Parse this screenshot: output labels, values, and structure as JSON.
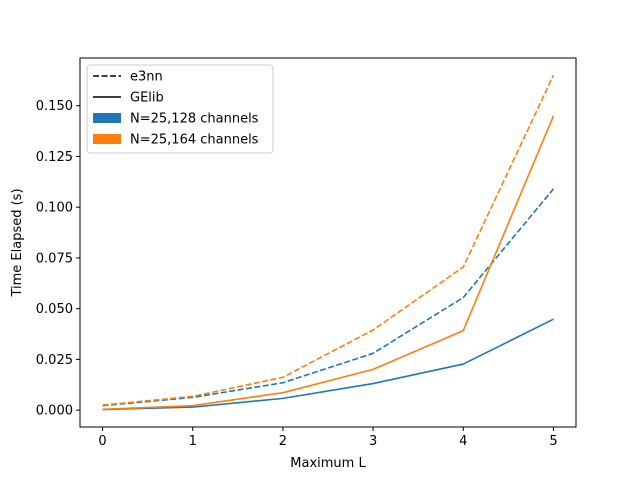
{
  "chart_data": {
    "type": "line",
    "xlabel": "Maximum L",
    "ylabel": "Time Elapsed (s)",
    "xlim": [
      -0.25,
      5.25
    ],
    "ylim": [
      -0.0083,
      0.1735
    ],
    "grid": false,
    "legend_position": "top-left",
    "x": [
      0,
      1,
      2,
      3,
      4,
      5
    ],
    "x_ticks": [
      0,
      1,
      2,
      3,
      4,
      5
    ],
    "x_tick_labels": [
      "0",
      "1",
      "2",
      "3",
      "4",
      "5"
    ],
    "y_ticks": [
      0.0,
      0.025,
      0.05,
      0.075,
      0.1,
      0.125,
      0.15
    ],
    "y_tick_labels": [
      "0.000",
      "0.025",
      "0.050",
      "0.075",
      "0.100",
      "0.125",
      "0.150"
    ],
    "legend": [
      {
        "label": "e3nn",
        "kind": "line",
        "style": "dashed",
        "color": "#000000"
      },
      {
        "label": "GElib",
        "kind": "line",
        "style": "solid",
        "color": "#000000"
      },
      {
        "label": "N=25,128 channels",
        "kind": "patch",
        "color": "#1f77b4"
      },
      {
        "label": "N=25,164 channels",
        "kind": "patch",
        "color": "#ff7f0e"
      }
    ],
    "series": [
      {
        "library": "e3nn",
        "channels": "N=25,128 channels",
        "color": "#1f77b4",
        "style": "dashed",
        "values": [
          0.0022,
          0.0063,
          0.0135,
          0.028,
          0.0555,
          0.109
        ]
      },
      {
        "library": "e3nn",
        "channels": "N=25,164 channels",
        "color": "#ff7f0e",
        "style": "dashed",
        "values": [
          0.0025,
          0.0068,
          0.0162,
          0.0395,
          0.0705,
          0.165
        ]
      },
      {
        "library": "GElib",
        "channels": "N=25,128 channels",
        "color": "#1f77b4",
        "style": "solid",
        "values": [
          0.0003,
          0.0015,
          0.0058,
          0.0131,
          0.0227,
          0.0448
        ]
      },
      {
        "library": "GElib",
        "channels": "N=25,164 channels",
        "color": "#ff7f0e",
        "style": "solid",
        "values": [
          0.0004,
          0.0022,
          0.0086,
          0.0201,
          0.0392,
          0.145
        ]
      }
    ]
  }
}
